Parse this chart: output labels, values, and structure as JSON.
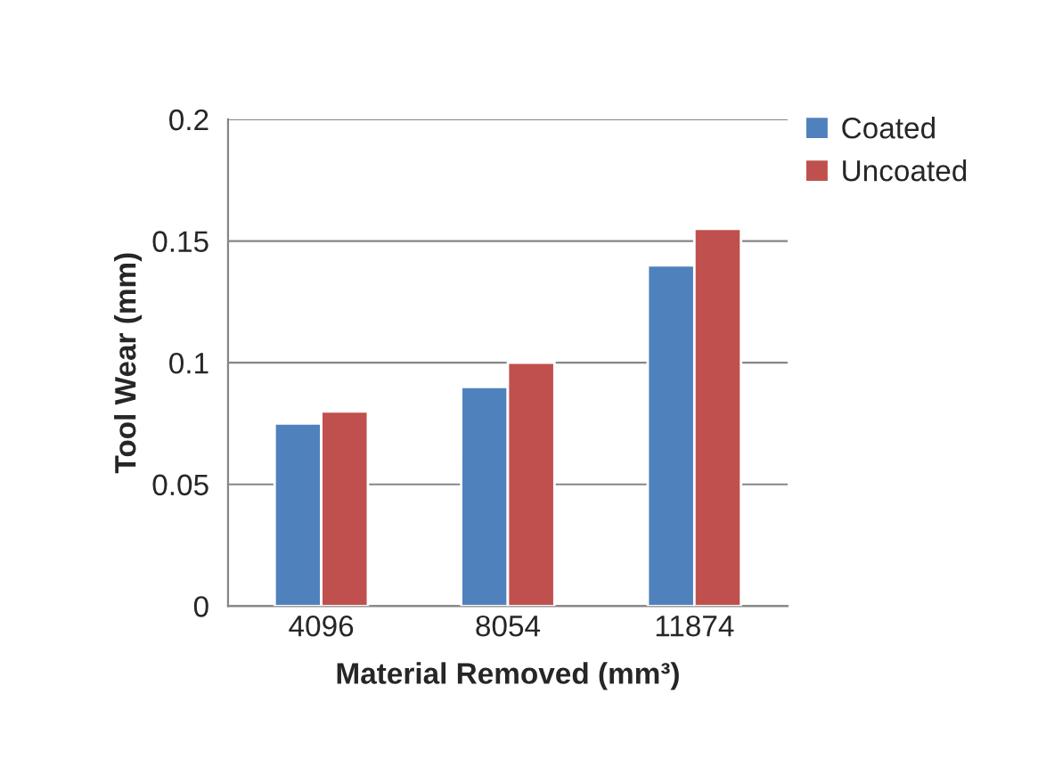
{
  "chart_data": {
    "type": "bar",
    "xlabel": "Material Removed (mm³)",
    "ylabel": "Tool Wear (mm)",
    "categories": [
      "4096",
      "8054",
      "11874"
    ],
    "series": [
      {
        "name": "Coated",
        "color": "#4f81bd",
        "values": [
          0.075,
          0.09,
          0.14
        ]
      },
      {
        "name": "Uncoated",
        "color": "#c0504d",
        "values": [
          0.08,
          0.1,
          0.155
        ]
      }
    ],
    "ylim": [
      0,
      0.2
    ],
    "yticks": [
      {
        "value": 0,
        "label": "0"
      },
      0.05,
      0.1,
      0.15,
      0.2
    ],
    "grid": "y",
    "legend": "top right"
  }
}
